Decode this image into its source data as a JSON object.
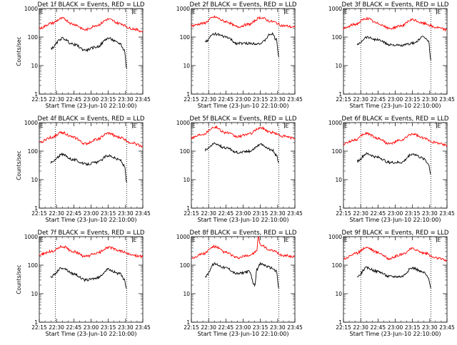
{
  "figure": {
    "background": "#ffffff",
    "events_color": "#000000",
    "lld_color": "#ff0000"
  },
  "chart_data": [
    {
      "type": "line",
      "title": "Det 1f BLACK = Events, RED = LLD",
      "ylabel": "Counts/sec",
      "xlabel": "Start Time (23-Jun-10 22:10:00)",
      "xticks": [
        "22:15",
        "22:30",
        "22:45",
        "23:00",
        "23:15",
        "23:30",
        "23:45"
      ],
      "yticks": [
        "1",
        "10",
        "100",
        "1000"
      ],
      "ylim": [
        1,
        1000
      ],
      "yscale": "log",
      "xlim_minutes": [
        "22:15",
        "23:45"
      ],
      "markers": [
        {
          "label": "E",
          "time": "22:15"
        },
        {
          "label": "E",
          "time": "23:36"
        }
      ],
      "vlines": [
        "22:29",
        "23:31"
      ],
      "series": [
        {
          "color": "#ff0000",
          "x": [
            "22:15",
            "22:25",
            "22:35",
            "22:45",
            "22:55",
            "23:05",
            "23:15",
            "23:25",
            "23:35",
            "23:45"
          ],
          "values": [
            200,
            300,
            450,
            280,
            180,
            260,
            420,
            300,
            200,
            160
          ]
        },
        {
          "color": "#000000",
          "x": [
            "22:25",
            "22:35",
            "22:45",
            "22:55",
            "23:05",
            "23:15",
            "23:25",
            "23:29",
            "23:31"
          ],
          "values": [
            40,
            90,
            55,
            35,
            45,
            90,
            60,
            35,
            8
          ]
        }
      ]
    },
    {
      "type": "line",
      "title": "Det 2f BLACK = Events, RED = LLD",
      "ylabel": "",
      "xlabel": "Start Time (23-Jun-10 22:10:00)",
      "xticks": [
        "22:15",
        "22:30",
        "22:45",
        "23:00",
        "23:15",
        "23:30",
        "23:45"
      ],
      "yticks": [
        "1",
        "10",
        "100",
        "1000"
      ],
      "ylim": [
        1,
        1000
      ],
      "yscale": "log",
      "xlim_minutes": [
        "22:15",
        "23:45"
      ],
      "markers": [
        {
          "label": "E",
          "time": "22:15"
        },
        {
          "label": "E",
          "time": "23:36"
        }
      ],
      "vlines": [
        "22:30",
        "23:31"
      ],
      "series": [
        {
          "color": "#ff0000",
          "x": [
            "22:15",
            "22:25",
            "22:35",
            "22:45",
            "22:55",
            "23:05",
            "23:15",
            "23:25",
            "23:35",
            "23:45"
          ],
          "values": [
            250,
            300,
            500,
            350,
            230,
            280,
            480,
            350,
            250,
            220
          ]
        },
        {
          "color": "#000000",
          "x": [
            "22:27",
            "22:35",
            "22:45",
            "22:55",
            "23:05",
            "23:15",
            "23:25",
            "23:29",
            "23:31"
          ],
          "values": [
            70,
            130,
            100,
            60,
            60,
            60,
            130,
            80,
            20
          ]
        }
      ]
    },
    {
      "type": "line",
      "title": "Det 3f BLACK = Events, RED = LLD",
      "ylabel": "",
      "xlabel": "Start Time (23-Jun-10 22:10:00)",
      "xticks": [
        "22:15",
        "22:30",
        "22:45",
        "23:00",
        "23:15",
        "23:30",
        "23:45"
      ],
      "yticks": [
        "1",
        "10",
        "100",
        "1000"
      ],
      "ylim": [
        1,
        1000
      ],
      "yscale": "log",
      "xlim_minutes": [
        "22:15",
        "23:45"
      ],
      "markers": [
        {
          "label": "E",
          "time": "22:15"
        },
        {
          "label": "E",
          "time": "23:36"
        }
      ],
      "vlines": [
        "22:30",
        "23:31"
      ],
      "series": [
        {
          "color": "#ff0000",
          "x": [
            "22:15",
            "22:25",
            "22:35",
            "22:45",
            "22:55",
            "23:05",
            "23:15",
            "23:25",
            "23:35",
            "23:45"
          ],
          "values": [
            200,
            280,
            450,
            300,
            200,
            250,
            400,
            300,
            220,
            180
          ]
        },
        {
          "color": "#000000",
          "x": [
            "22:27",
            "22:35",
            "22:45",
            "22:55",
            "23:05",
            "23:15",
            "23:25",
            "23:29",
            "23:31"
          ],
          "values": [
            55,
            100,
            80,
            55,
            50,
            60,
            100,
            70,
            15
          ]
        }
      ]
    },
    {
      "type": "line",
      "title": "Det 4f BLACK = Events, RED = LLD",
      "ylabel": "Counts/sec",
      "xlabel": "Start Time (23-Jun-10 22:10:00)",
      "xticks": [
        "22:15",
        "22:30",
        "22:45",
        "23:00",
        "23:15",
        "23:30",
        "23:45"
      ],
      "yticks": [
        "1",
        "10",
        "100",
        "1000"
      ],
      "ylim": [
        1,
        1000
      ],
      "yscale": "log",
      "xlim_minutes": [
        "22:15",
        "23:45"
      ],
      "markers": [
        {
          "label": "E",
          "time": "22:15"
        },
        {
          "label": "E",
          "time": "23:36"
        }
      ],
      "vlines": [
        "22:29",
        "23:31"
      ],
      "series": [
        {
          "color": "#ff0000",
          "x": [
            "22:15",
            "22:25",
            "22:35",
            "22:45",
            "22:55",
            "23:05",
            "23:15",
            "23:25",
            "23:35",
            "23:45"
          ],
          "values": [
            200,
            300,
            450,
            300,
            180,
            260,
            420,
            300,
            200,
            150
          ]
        },
        {
          "color": "#000000",
          "x": [
            "22:25",
            "22:35",
            "22:45",
            "22:55",
            "23:05",
            "23:15",
            "23:25",
            "23:29",
            "23:31"
          ],
          "values": [
            40,
            75,
            50,
            35,
            40,
            70,
            50,
            30,
            8
          ]
        }
      ]
    },
    {
      "type": "line",
      "title": "Det 5f BLACK = Events, RED = LLD",
      "ylabel": "",
      "xlabel": "Start Time (23-Jun-10 22:10:00)",
      "xticks": [
        "22:15",
        "22:30",
        "22:45",
        "23:00",
        "23:15",
        "23:30",
        "23:45"
      ],
      "yticks": [
        "1",
        "10",
        "100",
        "1000"
      ],
      "ylim": [
        1,
        1000
      ],
      "yscale": "log",
      "xlim_minutes": [
        "22:15",
        "23:45"
      ],
      "markers": [
        {
          "label": "E",
          "time": "22:15"
        },
        {
          "label": "E",
          "time": "23:36"
        }
      ],
      "vlines": [
        "22:30",
        "23:31"
      ],
      "series": [
        {
          "color": "#ff0000",
          "x": [
            "22:15",
            "22:25",
            "22:35",
            "22:45",
            "22:55",
            "23:05",
            "23:15",
            "23:25",
            "23:35",
            "23:45"
          ],
          "values": [
            300,
            400,
            700,
            450,
            320,
            400,
            650,
            450,
            330,
            280
          ]
        },
        {
          "color": "#000000",
          "x": [
            "22:27",
            "22:35",
            "22:45",
            "22:55",
            "23:05",
            "23:15",
            "23:25",
            "23:29",
            "23:31"
          ],
          "values": [
            110,
            180,
            130,
            90,
            100,
            170,
            110,
            70,
            40
          ]
        }
      ]
    },
    {
      "type": "line",
      "title": "Det 6f BLACK = Events, RED = LLD",
      "ylabel": "",
      "xlabel": "Start Time (23-Jun-10 22:10:00)",
      "xticks": [
        "22:15",
        "22:30",
        "22:45",
        "23:00",
        "23:15",
        "23:30",
        "23:45"
      ],
      "yticks": [
        "1",
        "10",
        "100",
        "1000"
      ],
      "ylim": [
        1,
        1000
      ],
      "yscale": "log",
      "xlim_minutes": [
        "22:15",
        "23:45"
      ],
      "markers": [
        {
          "label": "E",
          "time": "22:15"
        },
        {
          "label": "E",
          "time": "23:36"
        }
      ],
      "vlines": [
        "22:30",
        "23:31"
      ],
      "series": [
        {
          "color": "#ff0000",
          "x": [
            "22:15",
            "22:25",
            "22:35",
            "22:45",
            "22:55",
            "23:05",
            "23:15",
            "23:25",
            "23:35",
            "23:45"
          ],
          "values": [
            180,
            250,
            420,
            280,
            180,
            240,
            400,
            280,
            200,
            160
          ]
        },
        {
          "color": "#000000",
          "x": [
            "22:27",
            "22:35",
            "22:45",
            "22:55",
            "23:05",
            "23:15",
            "23:25",
            "23:29",
            "23:31"
          ],
          "values": [
            45,
            80,
            60,
            40,
            40,
            80,
            55,
            35,
            15
          ]
        }
      ]
    },
    {
      "type": "line",
      "title": "Det 7f BLACK = Events, RED = LLD",
      "ylabel": "Counts/sec",
      "xlabel": "Start Time (23-Jun-10 22:10:00)",
      "xticks": [
        "22:15",
        "22:30",
        "22:45",
        "23:00",
        "23:15",
        "23:30",
        "23:45"
      ],
      "yticks": [
        "1",
        "10",
        "100",
        "1000"
      ],
      "ylim": [
        1,
        1000
      ],
      "yscale": "log",
      "xlim_minutes": [
        "22:15",
        "23:45"
      ],
      "markers": [
        {
          "label": "E",
          "time": "22:15"
        },
        {
          "label": "E",
          "time": "23:36"
        }
      ],
      "vlines": [
        "22:29",
        "23:31"
      ],
      "series": [
        {
          "color": "#ff0000",
          "x": [
            "22:15",
            "22:25",
            "22:35",
            "22:45",
            "22:55",
            "23:05",
            "23:15",
            "23:25",
            "23:35",
            "23:45"
          ],
          "values": [
            230,
            300,
            450,
            300,
            200,
            260,
            420,
            320,
            230,
            200
          ]
        },
        {
          "color": "#000000",
          "x": [
            "22:25",
            "22:35",
            "22:45",
            "22:55",
            "23:05",
            "23:15",
            "23:25",
            "23:29",
            "23:31"
          ],
          "values": [
            40,
            80,
            50,
            30,
            35,
            70,
            50,
            30,
            15
          ]
        }
      ]
    },
    {
      "type": "line",
      "title": "Det 8f BLACK = Events, RED = LLD",
      "ylabel": "",
      "xlabel": "Start Time (23-Jun-10 22:10:00)",
      "xticks": [
        "22:15",
        "22:30",
        "22:45",
        "23:00",
        "23:15",
        "23:30",
        "23:45"
      ],
      "yticks": [
        "1",
        "10",
        "100",
        "1000"
      ],
      "ylim": [
        1,
        1000
      ],
      "yscale": "log",
      "xlim_minutes": [
        "22:15",
        "23:45"
      ],
      "markers": [
        {
          "label": "E",
          "time": "22:15"
        },
        {
          "label": "E",
          "time": "23:36"
        }
      ],
      "vlines": [
        "22:30",
        "23:31"
      ],
      "series": [
        {
          "color": "#ff0000",
          "x": [
            "22:15",
            "22:25",
            "22:35",
            "22:45",
            "22:55",
            "23:05",
            "23:12",
            "23:13",
            "23:15",
            "23:25",
            "23:35",
            "23:45"
          ],
          "values": [
            180,
            250,
            450,
            280,
            180,
            220,
            300,
            1000,
            500,
            320,
            220,
            200
          ]
        },
        {
          "color": "#000000",
          "x": [
            "22:27",
            "22:35",
            "22:45",
            "22:55",
            "23:05",
            "23:10",
            "23:12",
            "23:15",
            "23:25",
            "23:29",
            "23:31"
          ],
          "values": [
            40,
            110,
            80,
            50,
            60,
            20,
            70,
            110,
            80,
            60,
            15
          ]
        }
      ]
    },
    {
      "type": "line",
      "title": "Det 9f BLACK = Events, RED = LLD",
      "ylabel": "",
      "xlabel": "Start Time (23-Jun-10 22:10:00)",
      "xticks": [
        "22:15",
        "22:30",
        "22:45",
        "23:00",
        "23:15",
        "23:30",
        "23:45"
      ],
      "yticks": [
        "1",
        "10",
        "100",
        "1000"
      ],
      "ylim": [
        1,
        1000
      ],
      "yscale": "log",
      "xlim_minutes": [
        "22:15",
        "23:45"
      ],
      "markers": [
        {
          "label": "E",
          "time": "22:15"
        },
        {
          "label": "E",
          "time": "23:36"
        }
      ],
      "vlines": [
        "22:30",
        "23:31"
      ],
      "series": [
        {
          "color": "#ff0000",
          "x": [
            "22:15",
            "22:25",
            "22:35",
            "22:45",
            "22:55",
            "23:05",
            "23:15",
            "23:25",
            "23:35",
            "23:45"
          ],
          "values": [
            170,
            250,
            420,
            280,
            170,
            230,
            380,
            270,
            180,
            150
          ]
        },
        {
          "color": "#000000",
          "x": [
            "22:27",
            "22:35",
            "22:45",
            "22:55",
            "23:05",
            "23:15",
            "23:25",
            "23:29",
            "23:31"
          ],
          "values": [
            40,
            80,
            60,
            40,
            40,
            80,
            55,
            35,
            15
          ]
        }
      ]
    }
  ]
}
